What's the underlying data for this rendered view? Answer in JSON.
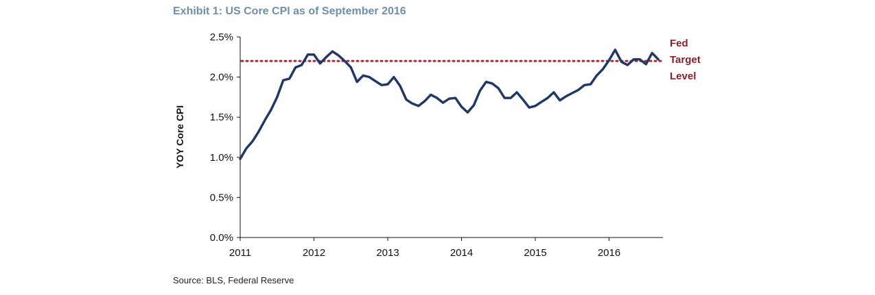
{
  "title": "Exhibit 1: US Core CPI as of September 2016",
  "source": "Source: BLS, Federal Reserve",
  "colors": {
    "line": "#1f3864",
    "reference": "#a0283a",
    "title": "#6f8fa8"
  },
  "chart_data": {
    "type": "line",
    "xlabel": "",
    "ylabel": "YOY Core CPI",
    "ylim": [
      0,
      0.025
    ],
    "xlim": [
      2011,
      2016.75
    ],
    "y_ticks": [
      "0.0%",
      "0.5%",
      "1.0%",
      "1.5%",
      "2.0%",
      "2.5%"
    ],
    "x_ticks": [
      "2011",
      "2012",
      "2013",
      "2014",
      "2015",
      "2016"
    ],
    "legend": "none",
    "grid": false,
    "reference_line": {
      "value": 0.022,
      "label": [
        "Fed",
        "Target",
        "Level"
      ]
    },
    "x": [
      2011.0,
      2011.083,
      2011.167,
      2011.25,
      2011.333,
      2011.417,
      2011.5,
      2011.583,
      2011.667,
      2011.75,
      2011.833,
      2011.917,
      2012.0,
      2012.083,
      2012.167,
      2012.25,
      2012.333,
      2012.417,
      2012.5,
      2012.583,
      2012.667,
      2012.75,
      2012.833,
      2012.917,
      2013.0,
      2013.083,
      2013.167,
      2013.25,
      2013.333,
      2013.417,
      2013.5,
      2013.583,
      2013.667,
      2013.75,
      2013.833,
      2013.917,
      2014.0,
      2014.083,
      2014.167,
      2014.25,
      2014.333,
      2014.417,
      2014.5,
      2014.583,
      2014.667,
      2014.75,
      2014.833,
      2014.917,
      2015.0,
      2015.083,
      2015.167,
      2015.25,
      2015.333,
      2015.417,
      2015.5,
      2015.583,
      2015.667,
      2015.75,
      2015.833,
      2015.917,
      2016.0,
      2016.083,
      2016.167,
      2016.25,
      2016.333,
      2016.417,
      2016.5,
      2016.583,
      2016.667
    ],
    "series": [
      {
        "values": [
          0.0098,
          0.0111,
          0.012,
          0.0132,
          0.0146,
          0.0159,
          0.0175,
          0.0196,
          0.0198,
          0.0212,
          0.0215,
          0.0228,
          0.0228,
          0.0217,
          0.0225,
          0.0232,
          0.0227,
          0.022,
          0.0212,
          0.0194,
          0.0202,
          0.02,
          0.0195,
          0.019,
          0.0191,
          0.02,
          0.0189,
          0.0172,
          0.0167,
          0.0164,
          0.017,
          0.0178,
          0.0174,
          0.0168,
          0.0173,
          0.0174,
          0.0163,
          0.0156,
          0.0165,
          0.0183,
          0.0194,
          0.0192,
          0.0186,
          0.0174,
          0.0174,
          0.0181,
          0.0172,
          0.0162,
          0.0164,
          0.0169,
          0.0174,
          0.0181,
          0.0171,
          0.0176,
          0.018,
          0.0184,
          0.019,
          0.0191,
          0.0202,
          0.021,
          0.0221,
          0.0234,
          0.0219,
          0.0215,
          0.0222,
          0.0222,
          0.0216,
          0.023,
          0.0222
        ]
      }
    ]
  }
}
